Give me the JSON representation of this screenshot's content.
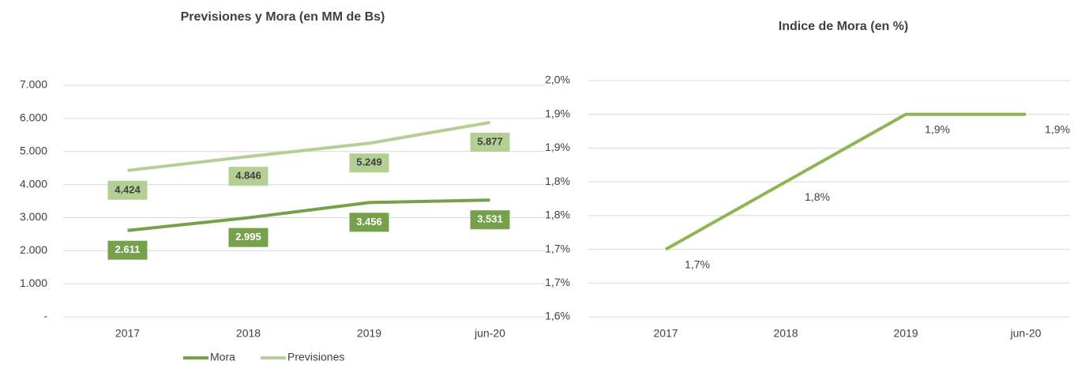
{
  "chart_data": [
    {
      "type": "line",
      "title": "Previsiones y Mora (en MM de Bs)",
      "categories": [
        "2017",
        "2018",
        "2019",
        "jun-20"
      ],
      "series": [
        {
          "name": "Mora",
          "color": "#76a04a",
          "values": [
            2611,
            2995,
            3456,
            3531
          ],
          "value_labels": [
            "2.611",
            "2.995",
            "3.456",
            "3.531"
          ]
        },
        {
          "name": "Previsiones",
          "color": "#b3cf94",
          "values": [
            4424,
            4846,
            5249,
            5877
          ],
          "value_labels": [
            "4.424",
            "4.846",
            "5.249",
            "5.877"
          ]
        }
      ],
      "ylim": [
        0,
        7000
      ],
      "yticks": [
        {
          "value": 0,
          "label": "-"
        },
        {
          "value": 1000,
          "label": "1.000"
        },
        {
          "value": 2000,
          "label": "2.000"
        },
        {
          "value": 3000,
          "label": "3.000"
        },
        {
          "value": 4000,
          "label": "4.000"
        },
        {
          "value": 5000,
          "label": "5.000"
        },
        {
          "value": 6000,
          "label": "6.000"
        },
        {
          "value": 7000,
          "label": "7.000"
        }
      ],
      "grid": true,
      "legend": "bottom"
    },
    {
      "type": "line",
      "title": "Indice de Mora (en %)",
      "categories": [
        "2017",
        "2018",
        "2019",
        "jun-20"
      ],
      "series": [
        {
          "name": "Indice de Mora",
          "color": "#8fb553",
          "values": [
            1.7,
            1.8,
            1.9,
            1.9
          ],
          "value_labels": [
            "1,7%",
            "1,8%",
            "1,9%",
            "1,9%"
          ]
        }
      ],
      "ylim": [
        1.6,
        1.95
      ],
      "yticks": [
        {
          "value": 1.6,
          "label": "1,6%"
        },
        {
          "value": 1.65,
          "label": "1,7%"
        },
        {
          "value": 1.7,
          "label": "1,7%"
        },
        {
          "value": 1.75,
          "label": "1,8%"
        },
        {
          "value": 1.8,
          "label": "1,8%"
        },
        {
          "value": 1.85,
          "label": "1,9%"
        },
        {
          "value": 1.9,
          "label": "1,9%"
        },
        {
          "value": 1.95,
          "label": "2,0%"
        }
      ],
      "grid": true
    }
  ]
}
